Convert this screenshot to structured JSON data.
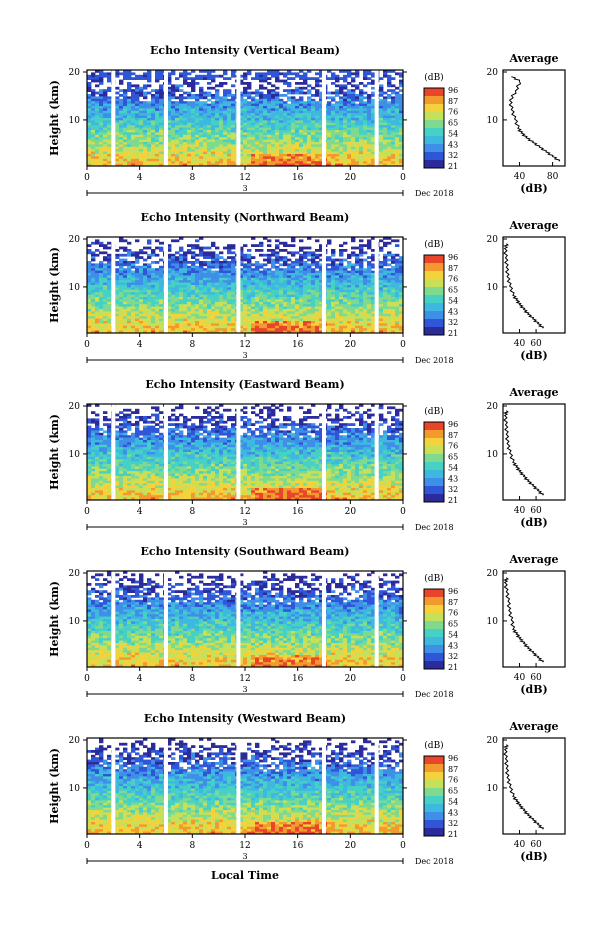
{
  "chart_data": [
    {
      "type": "heatmap",
      "title": "Echo Intensity (Vertical Beam)",
      "ylabel": "Height (km)",
      "x_ticks": [
        "0",
        "4",
        "8",
        "12",
        "16",
        "20",
        "0"
      ],
      "y_ticks": [
        "20",
        "10"
      ],
      "date_day": "3",
      "date_month": "Dec 2018",
      "colorbar_unit": "(dB)",
      "colorbar_ticks": [
        "96",
        "87",
        "76",
        "65",
        "54",
        "43",
        "32",
        "21"
      ],
      "profile": {
        "title": "Average",
        "xlabel": "(dB)",
        "x_ticks": [
          "40",
          "80"
        ],
        "y_ticks": [
          "20",
          "10"
        ],
        "x": [
          88,
          80,
          72,
          64,
          56,
          48,
          42,
          38,
          34,
          30,
          28,
          35,
          40,
          30
        ],
        "y": [
          1,
          2,
          3,
          4,
          5,
          6,
          7,
          8,
          10,
          12,
          14,
          16,
          18,
          19
        ]
      }
    },
    {
      "type": "heatmap",
      "title": "Echo Intensity (Northward Beam)",
      "ylabel": "Height (km)",
      "x_ticks": [
        "0",
        "4",
        "8",
        "12",
        "16",
        "20",
        "0"
      ],
      "y_ticks": [
        "20",
        "10"
      ],
      "date_day": "3",
      "date_month": "Dec 2018",
      "colorbar_unit": "(dB)",
      "colorbar_ticks": [
        "96",
        "87",
        "76",
        "65",
        "54",
        "43",
        "32",
        "21"
      ],
      "profile": {
        "title": "Average",
        "xlabel": "(dB)",
        "x_ticks": [
          "40",
          "60"
        ],
        "y_ticks": [
          "20",
          "10"
        ],
        "x": [
          68,
          62,
          56,
          50,
          45,
          40,
          36,
          32,
          28,
          25,
          24,
          23,
          22,
          24
        ],
        "y": [
          1,
          2,
          3,
          4,
          5,
          6,
          7,
          8,
          10,
          12,
          14,
          16,
          18,
          19
        ]
      }
    },
    {
      "type": "heatmap",
      "title": "Echo Intensity (Eastward Beam)",
      "ylabel": "Height (km)",
      "x_ticks": [
        "0",
        "4",
        "8",
        "12",
        "16",
        "20",
        "0"
      ],
      "y_ticks": [
        "20",
        "10"
      ],
      "date_day": "3",
      "date_month": "Dec 2018",
      "colorbar_unit": "(dB)",
      "colorbar_ticks": [
        "96",
        "87",
        "76",
        "65",
        "54",
        "43",
        "32",
        "21"
      ],
      "profile": {
        "title": "Average",
        "xlabel": "(dB)",
        "x_ticks": [
          "40",
          "60"
        ],
        "y_ticks": [
          "20",
          "10"
        ],
        "x": [
          68,
          62,
          56,
          50,
          45,
          40,
          36,
          32,
          28,
          25,
          24,
          23,
          22,
          24
        ],
        "y": [
          1,
          2,
          3,
          4,
          5,
          6,
          7,
          8,
          10,
          12,
          14,
          16,
          18,
          19
        ]
      }
    },
    {
      "type": "heatmap",
      "title": "Echo Intensity (Southward Beam)",
      "ylabel": "Height (km)",
      "x_ticks": [
        "0",
        "4",
        "8",
        "12",
        "16",
        "20",
        "0"
      ],
      "y_ticks": [
        "20",
        "10"
      ],
      "date_day": "3",
      "date_month": "Dec 2018",
      "colorbar_unit": "(dB)",
      "colorbar_ticks": [
        "96",
        "87",
        "76",
        "65",
        "54",
        "43",
        "32",
        "21"
      ],
      "profile": {
        "title": "Average",
        "xlabel": "(dB)",
        "x_ticks": [
          "40",
          "60"
        ],
        "y_ticks": [
          "20",
          "10"
        ],
        "x": [
          68,
          62,
          56,
          50,
          45,
          40,
          36,
          32,
          30,
          27,
          26,
          24,
          22,
          24
        ],
        "y": [
          1,
          2,
          3,
          4,
          5,
          6,
          7,
          8,
          10,
          12,
          14,
          16,
          18,
          19
        ]
      }
    },
    {
      "type": "heatmap",
      "title": "Echo Intensity (Westward Beam)",
      "ylabel": "Height (km)",
      "x_ticks": [
        "0",
        "4",
        "8",
        "12",
        "16",
        "20",
        "0"
      ],
      "y_ticks": [
        "20",
        "10"
      ],
      "date_day": "3",
      "date_month": "Dec 2018",
      "colorbar_unit": "(dB)",
      "colorbar_ticks": [
        "96",
        "87",
        "76",
        "65",
        "54",
        "43",
        "32",
        "21"
      ],
      "profile": {
        "title": "Average",
        "xlabel": "(dB)",
        "x_ticks": [
          "40",
          "60"
        ],
        "y_ticks": [
          "20",
          "10"
        ],
        "x": [
          68,
          62,
          56,
          50,
          45,
          40,
          36,
          32,
          28,
          25,
          24,
          23,
          22,
          24
        ],
        "y": [
          1,
          2,
          3,
          4,
          5,
          6,
          7,
          8,
          10,
          12,
          14,
          16,
          18,
          19
        ]
      }
    }
  ],
  "shared_xlabel": "Local Time",
  "colormap": [
    "#2b2b9b",
    "#2f56d6",
    "#3f8ee8",
    "#3fb8e0",
    "#46d1c4",
    "#7fd98e",
    "#c6e05a",
    "#f3d23b",
    "#f29a2e",
    "#e8452a"
  ]
}
